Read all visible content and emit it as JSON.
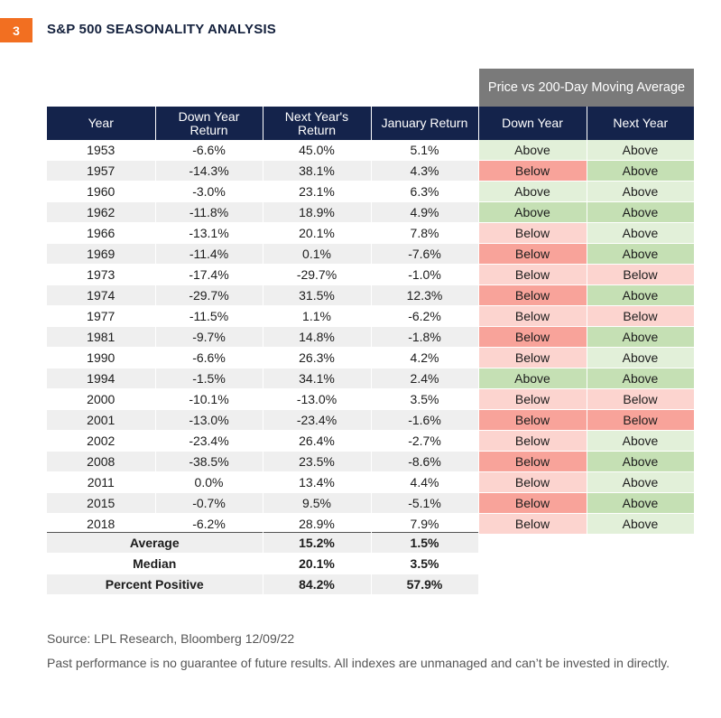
{
  "figure": {
    "number": "3",
    "title": "S&P 500 SEASONALITY ANALYSIS",
    "group_header": "Price vs 200-Day Moving Average",
    "source": "Source: LPL Research, Bloomberg  12/09/22",
    "disclaimer": "Past performance is no guarantee of future results. All indexes are unmanaged and can’t be invested in directly."
  },
  "colors": {
    "header_bg": "#14234b",
    "group_header_bg": "#7a7a7a",
    "badge": "#f26f21",
    "above_light": "#e2f0d9",
    "above_dark": "#c5e0b4",
    "below_light": "#fcd4cf",
    "below_dark": "#f8a39a"
  },
  "chart_data": {
    "type": "table",
    "title": "S&P 500 SEASONALITY ANALYSIS",
    "columns": [
      "Year",
      "Down Year Return",
      "Next Year's Return",
      "January Return",
      "Down Year",
      "Next Year"
    ],
    "rows": [
      {
        "year": "1953",
        "down": "-6.6%",
        "next": "45.0%",
        "jan": "5.1%",
        "dy": "Above",
        "ny": "Above",
        "dy_shade": "above-light",
        "ny_shade": "above-light"
      },
      {
        "year": "1957",
        "down": "-14.3%",
        "next": "38.1%",
        "jan": "4.3%",
        "dy": "Below",
        "ny": "Above",
        "dy_shade": "below-dark",
        "ny_shade": "above-dark"
      },
      {
        "year": "1960",
        "down": "-3.0%",
        "next": "23.1%",
        "jan": "6.3%",
        "dy": "Above",
        "ny": "Above",
        "dy_shade": "above-light",
        "ny_shade": "above-light"
      },
      {
        "year": "1962",
        "down": "-11.8%",
        "next": "18.9%",
        "jan": "4.9%",
        "dy": "Above",
        "ny": "Above",
        "dy_shade": "above-dark",
        "ny_shade": "above-dark"
      },
      {
        "year": "1966",
        "down": "-13.1%",
        "next": "20.1%",
        "jan": "7.8%",
        "dy": "Below",
        "ny": "Above",
        "dy_shade": "below-light",
        "ny_shade": "above-light"
      },
      {
        "year": "1969",
        "down": "-11.4%",
        "next": "0.1%",
        "jan": "-7.6%",
        "dy": "Below",
        "ny": "Above",
        "dy_shade": "below-dark",
        "ny_shade": "above-dark"
      },
      {
        "year": "1973",
        "down": "-17.4%",
        "next": "-29.7%",
        "jan": "-1.0%",
        "dy": "Below",
        "ny": "Below",
        "dy_shade": "below-light",
        "ny_shade": "below-light"
      },
      {
        "year": "1974",
        "down": "-29.7%",
        "next": "31.5%",
        "jan": "12.3%",
        "dy": "Below",
        "ny": "Above",
        "dy_shade": "below-dark",
        "ny_shade": "above-dark"
      },
      {
        "year": "1977",
        "down": "-11.5%",
        "next": "1.1%",
        "jan": "-6.2%",
        "dy": "Below",
        "ny": "Below",
        "dy_shade": "below-light",
        "ny_shade": "below-light"
      },
      {
        "year": "1981",
        "down": "-9.7%",
        "next": "14.8%",
        "jan": "-1.8%",
        "dy": "Below",
        "ny": "Above",
        "dy_shade": "below-dark",
        "ny_shade": "above-dark"
      },
      {
        "year": "1990",
        "down": "-6.6%",
        "next": "26.3%",
        "jan": "4.2%",
        "dy": "Below",
        "ny": "Above",
        "dy_shade": "below-light",
        "ny_shade": "above-light"
      },
      {
        "year": "1994",
        "down": "-1.5%",
        "next": "34.1%",
        "jan": "2.4%",
        "dy": "Above",
        "ny": "Above",
        "dy_shade": "above-dark",
        "ny_shade": "above-dark"
      },
      {
        "year": "2000",
        "down": "-10.1%",
        "next": "-13.0%",
        "jan": "3.5%",
        "dy": "Below",
        "ny": "Below",
        "dy_shade": "below-light",
        "ny_shade": "below-light"
      },
      {
        "year": "2001",
        "down": "-13.0%",
        "next": "-23.4%",
        "jan": "-1.6%",
        "dy": "Below",
        "ny": "Below",
        "dy_shade": "below-dark",
        "ny_shade": "below-dark"
      },
      {
        "year": "2002",
        "down": "-23.4%",
        "next": "26.4%",
        "jan": "-2.7%",
        "dy": "Below",
        "ny": "Above",
        "dy_shade": "below-light",
        "ny_shade": "above-light"
      },
      {
        "year": "2008",
        "down": "-38.5%",
        "next": "23.5%",
        "jan": "-8.6%",
        "dy": "Below",
        "ny": "Above",
        "dy_shade": "below-dark",
        "ny_shade": "above-dark"
      },
      {
        "year": "2011",
        "down": "0.0%",
        "next": "13.4%",
        "jan": "4.4%",
        "dy": "Below",
        "ny": "Above",
        "dy_shade": "below-light",
        "ny_shade": "above-light"
      },
      {
        "year": "2015",
        "down": "-0.7%",
        "next": "9.5%",
        "jan": "-5.1%",
        "dy": "Below",
        "ny": "Above",
        "dy_shade": "below-dark",
        "ny_shade": "above-dark"
      },
      {
        "year": "2018",
        "down": "-6.2%",
        "next": "28.9%",
        "jan": "7.9%",
        "dy": "Below",
        "ny": "Above",
        "dy_shade": "below-light",
        "ny_shade": "above-light"
      }
    ],
    "summary": [
      {
        "label": "Average",
        "next": "15.2%",
        "jan": "1.5%"
      },
      {
        "label": "Median",
        "next": "20.1%",
        "jan": "3.5%"
      },
      {
        "label": "Percent Positive",
        "next": "84.2%",
        "jan": "57.9%"
      }
    ]
  }
}
